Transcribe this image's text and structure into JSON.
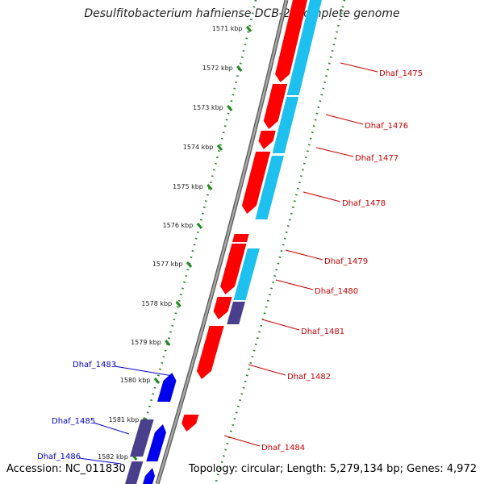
{
  "header": {
    "title": "Desulfitobacterium hafniense DCB-2, complete genome"
  },
  "footer": {
    "accession": "Accession: NC_011830",
    "summary": "Topology: circular; Length: 5,279,134 bp; Genes: 4,972"
  },
  "colors": {
    "backbone": "#8c8c8c",
    "dots": "#1f8a1f",
    "forward_gene": "#ff0000",
    "reverse_gene": "#0000ee",
    "cds_blue": "#1ec0f0",
    "cds_dark": "#4a3f8c",
    "forward_label": "#cc0000",
    "reverse_label": "#0000cc"
  },
  "scale": {
    "ticks": [
      "1571 kbp",
      "1572 kbp",
      "1573 kbp",
      "1574 kbp",
      "1575 kbp",
      "1576 kbp",
      "1577 kbp",
      "1578 kbp",
      "1579 kbp",
      "1580 kbp",
      "1581 kbp",
      "1582 kbp"
    ]
  },
  "genes": [
    {
      "label": "Dhaf_1475",
      "strand": "forward"
    },
    {
      "label": "Dhaf_1476",
      "strand": "forward"
    },
    {
      "label": "Dhaf_1477",
      "strand": "forward"
    },
    {
      "label": "Dhaf_1478",
      "strand": "forward"
    },
    {
      "label": "Dhaf_1479",
      "strand": "forward"
    },
    {
      "label": "Dhaf_1480",
      "strand": "forward"
    },
    {
      "label": "Dhaf_1481",
      "strand": "forward"
    },
    {
      "label": "Dhaf_1482",
      "strand": "forward"
    },
    {
      "label": "Dhaf_1483",
      "strand": "reverse"
    },
    {
      "label": "Dhaf_1484",
      "strand": "forward"
    },
    {
      "label": "Dhaf_1485",
      "strand": "reverse"
    },
    {
      "label": "Dhaf_1486",
      "strand": "reverse"
    }
  ]
}
